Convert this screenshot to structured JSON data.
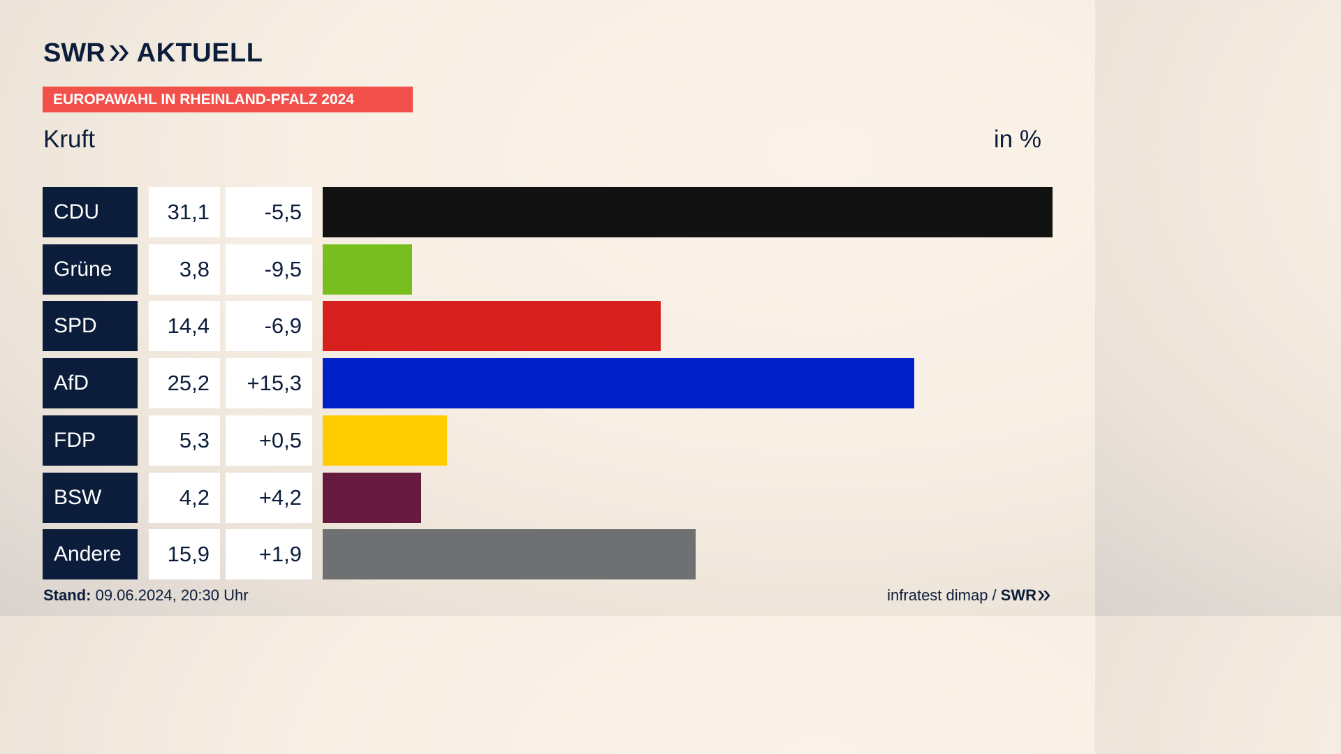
{
  "header": {
    "brand_part1": "SWR",
    "brand_part2": "AKTUELL",
    "banner": "EUROPAWAHL IN RHEINLAND-PFALZ 2024",
    "region": "Kruft",
    "unit": "in %"
  },
  "colors": {
    "navy": "#0b1d3a",
    "banner": "#f1514a",
    "CDU": "#121212",
    "Grüne": "#78be1e",
    "SPD": "#d71f1d",
    "AfD": "#001fc9",
    "FDP": "#ffcc00",
    "BSW": "#661a3e",
    "Andere": "#6f7072"
  },
  "chart_data": {
    "type": "bar",
    "orientation": "horizontal",
    "categories": [
      "CDU",
      "Grüne",
      "SPD",
      "AfD",
      "FDP",
      "BSW",
      "Andere"
    ],
    "values": [
      31.1,
      3.8,
      14.4,
      25.2,
      5.3,
      4.2,
      15.9
    ],
    "value_labels": [
      "31,1",
      "3,8",
      "14,4",
      "25,2",
      "5,3",
      "4,2",
      "15,9"
    ],
    "changes": [
      -5.5,
      -9.5,
      -6.9,
      15.3,
      0.5,
      4.2,
      1.9
    ],
    "change_labels": [
      "-5,5",
      "-9,5",
      "-6,9",
      "+15,3",
      "+0,5",
      "+4,2",
      "+1,9"
    ],
    "colors": [
      "#121212",
      "#78be1e",
      "#d71f1d",
      "#001fc9",
      "#ffcc00",
      "#661a3e",
      "#6f7072"
    ],
    "xlim": [
      0,
      31.1
    ],
    "unit": "in %",
    "grid": false,
    "legend": "none"
  },
  "footer": {
    "stand_label": "Stand:",
    "stand_value": "09.06.2024, 20:30 Uhr",
    "source": "infratest dimap /",
    "source_brand": "SWR"
  }
}
